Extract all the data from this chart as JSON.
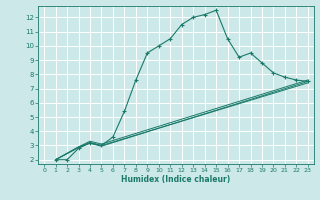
{
  "title": "",
  "xlabel": "Humidex (Indice chaleur)",
  "bg_color": "#cce8e8",
  "grid_color": "#ffffff",
  "line_color": "#1a7a6a",
  "xlim": [
    -0.5,
    23.5
  ],
  "ylim": [
    1.7,
    12.8
  ],
  "xticks": [
    0,
    1,
    2,
    3,
    4,
    5,
    6,
    7,
    8,
    9,
    10,
    11,
    12,
    13,
    14,
    15,
    16,
    17,
    18,
    19,
    20,
    21,
    22,
    23
  ],
  "yticks": [
    2,
    3,
    4,
    5,
    6,
    7,
    8,
    9,
    10,
    11,
    12
  ],
  "lines": [
    {
      "x": [
        1,
        2,
        3,
        4,
        5,
        6,
        7,
        8,
        9,
        10,
        11,
        12,
        13,
        14,
        15,
        16,
        17,
        18,
        19,
        20,
        21,
        22,
        23
      ],
      "y": [
        2,
        2,
        2.8,
        3.2,
        3.0,
        3.6,
        5.4,
        7.6,
        9.5,
        10.0,
        10.5,
        11.5,
        12.0,
        12.2,
        12.5,
        10.5,
        9.2,
        9.5,
        8.8,
        8.1,
        7.8,
        7.6,
        7.5
      ],
      "marker": true
    },
    {
      "x": [
        1,
        3,
        4,
        5,
        23
      ],
      "y": [
        2,
        2.9,
        3.3,
        3.1,
        7.6
      ],
      "marker": false
    },
    {
      "x": [
        1,
        3,
        4,
        5,
        23
      ],
      "y": [
        2,
        2.9,
        3.2,
        3.0,
        7.4
      ],
      "marker": false
    },
    {
      "x": [
        1,
        3,
        4,
        5,
        23
      ],
      "y": [
        2,
        2.85,
        3.15,
        2.95,
        7.5
      ],
      "marker": false
    }
  ]
}
